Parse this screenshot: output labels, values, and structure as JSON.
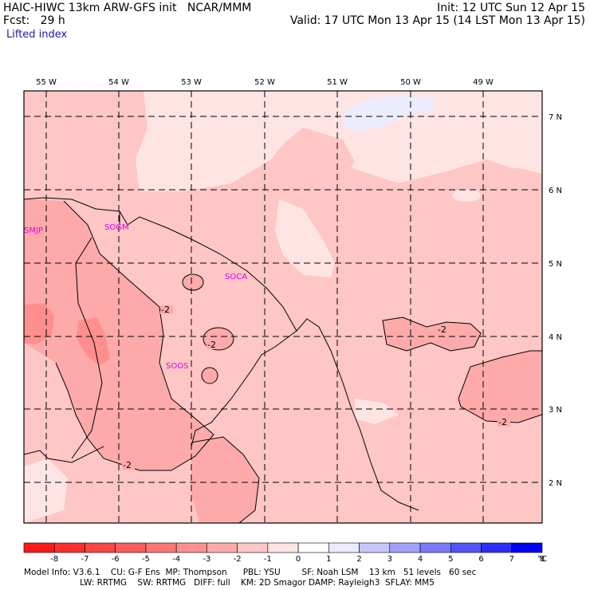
{
  "header": {
    "left_line1": "HAIC-HIWC 13km ARW-GFS init   NCAR/MMM",
    "left_line2": "Fcst:   29 h",
    "right_line1": "Init: 12 UTC Sun 12 Apr 15",
    "right_line2": "Valid: 17 UTC Mon 13 Apr 15 (14 LST Mon 13 Apr 15)",
    "field": "Lifted index"
  },
  "map": {
    "lon_labels": [
      "55 W",
      "54 W",
      "53 W",
      "52 W",
      "51 W",
      "50 W",
      "49 W"
    ],
    "lat_labels": [
      "7 N",
      "6 N",
      "5 N",
      "4 N",
      "3 N",
      "2 N"
    ],
    "stations": [
      "SMJP",
      "SOGM",
      "SOCA",
      "SOOS"
    ],
    "contour_label": "-2",
    "colors": {
      "frame": "#000000",
      "station": "#e000e0",
      "boundary": "#000000"
    }
  },
  "colorbar": {
    "labels": [
      "-8",
      "-7",
      "-6",
      "-5",
      "-4",
      "-3",
      "-2",
      "-1",
      "0",
      "1",
      "2",
      "3",
      "4",
      "5",
      "6",
      "7",
      "8"
    ],
    "unit": "°C",
    "colors": [
      "#ff1a1a",
      "#ff2e2e",
      "#ff4545",
      "#ff5c5c",
      "#ff7575",
      "#ff8f8f",
      "#ffaaaa",
      "#ffc6c6",
      "#ffe4e4",
      "#ffffff",
      "#ececff",
      "#c6c6ff",
      "#a0a0ff",
      "#7a7aff",
      "#5454ff",
      "#2e2eff",
      "#0000ff"
    ]
  },
  "footer": {
    "line1": "Model Info: V3.6.1    CU: G-F Ens  MP: Thompson      PBL: YSU        SF: Noah LSM    13 km   51 levels   60 sec",
    "line2": "                     LW: RRTMG    SW: RRTMG   DIFF: full    KM: 2D Smagor DAMP: Rayleigh3  SFLAY: MM5"
  }
}
